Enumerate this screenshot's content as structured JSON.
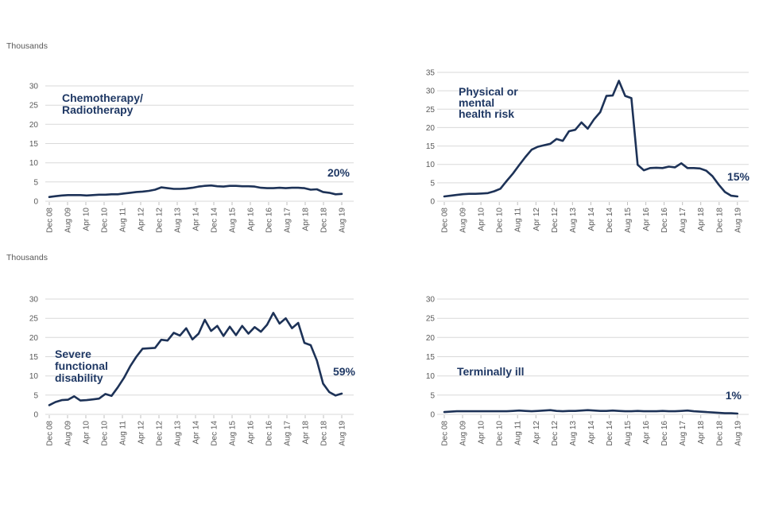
{
  "units_label": "Thousands",
  "colors": {
    "background": "#FFFFFF",
    "line": "#1D3257",
    "navy_text": "#1F3864",
    "grid": "#D9D9D9",
    "axis_text": "#595959"
  },
  "chart_data": [
    {
      "type": "line",
      "title": "Chemotherapy/ Radiotherapy",
      "title_lines": [
        "Chemotherapy/",
        "Radiotherapy"
      ],
      "annotation": "20%",
      "unit": "Thousands",
      "ylim": [
        0,
        30
      ],
      "y_ticks": [
        0,
        5,
        10,
        15,
        20,
        25,
        30
      ],
      "grid": "horizontal",
      "legend": "none",
      "x_tick_labels": [
        "Dec 08",
        "Aug 09",
        "Apr 10",
        "Dec 10",
        "Aug 11",
        "Apr 12",
        "Dec 12",
        "Aug 13",
        "Apr 14",
        "Dec 14",
        "Aug 15",
        "Apr 16",
        "Dec 16",
        "Aug 17",
        "Apr 18",
        "Dec 18",
        "Aug 19"
      ],
      "values": [
        1.1,
        1.3,
        1.5,
        1.6,
        1.6,
        1.6,
        1.5,
        1.6,
        1.7,
        1.7,
        1.8,
        1.8,
        2.0,
        2.2,
        2.4,
        2.5,
        2.7,
        3.0,
        3.6,
        3.4,
        3.2,
        3.2,
        3.3,
        3.5,
        3.8,
        4.0,
        4.1,
        3.9,
        3.8,
        4.0,
        4.0,
        3.9,
        3.9,
        3.8,
        3.5,
        3.4,
        3.4,
        3.5,
        3.4,
        3.5,
        3.5,
        3.4,
        3.0,
        3.1,
        2.4,
        2.2,
        1.8,
        1.9
      ]
    },
    {
      "type": "line",
      "title": "Physical or mental health risk",
      "title_lines": [
        "Physical or",
        "mental",
        "health risk"
      ],
      "annotation": "15%",
      "unit": "Thousands",
      "ylim": [
        0,
        35
      ],
      "y_ticks": [
        0,
        5,
        10,
        15,
        20,
        25,
        30,
        35
      ],
      "grid": "horizontal",
      "legend": "none",
      "x_tick_labels": [
        "Dec 08",
        "Aug 09",
        "Apr 10",
        "Dec 10",
        "Aug 11",
        "Apr 12",
        "Dec 12",
        "Aug 13",
        "Apr 14",
        "Dec 14",
        "Aug 15",
        "Apr 16",
        "Dec 16",
        "Aug 17",
        "Apr 18",
        "Dec 18",
        "Aug 19"
      ],
      "values": [
        1.3,
        1.5,
        1.7,
        1.9,
        2.0,
        2.0,
        2.1,
        2.2,
        2.7,
        3.4,
        5.5,
        7.5,
        9.8,
        12.0,
        14.0,
        14.8,
        15.2,
        15.6,
        16.9,
        16.4,
        19.0,
        19.4,
        21.4,
        19.7,
        22.2,
        24.2,
        28.6,
        28.7,
        32.7,
        28.6,
        28.0,
        9.9,
        8.4,
        9.0,
        9.1,
        9.0,
        9.4,
        9.2,
        10.3,
        9.0,
        9.0,
        8.9,
        8.3,
        6.8,
        4.5,
        2.5,
        1.5,
        1.3
      ]
    },
    {
      "type": "line",
      "title": "Severe functional disability",
      "title_lines": [
        "Severe",
        "functional",
        "disability"
      ],
      "annotation": "59%",
      "unit": "Thousands",
      "ylim": [
        0,
        30
      ],
      "y_ticks": [
        0,
        5,
        10,
        15,
        20,
        25,
        30
      ],
      "grid": "horizontal",
      "legend": "none",
      "x_tick_labels": [
        "Dec 08",
        "Aug 09",
        "Apr 10",
        "Dec 10",
        "Aug 11",
        "Apr 12",
        "Dec 12",
        "Aug 13",
        "Apr 14",
        "Dec 14",
        "Aug 15",
        "Apr 16",
        "Dec 16",
        "Aug 17",
        "Apr 18",
        "Dec 18",
        "Aug 19"
      ],
      "values": [
        2.4,
        3.2,
        3.7,
        3.8,
        4.7,
        3.6,
        3.7,
        3.9,
        4.1,
        5.3,
        4.8,
        7.0,
        9.5,
        12.5,
        15.0,
        17.1,
        17.2,
        17.3,
        19.4,
        19.2,
        21.2,
        20.5,
        22.4,
        19.5,
        21.0,
        24.6,
        21.7,
        23.0,
        20.4,
        22.8,
        20.6,
        23.0,
        21.0,
        22.7,
        21.5,
        23.3,
        26.4,
        23.6,
        25.0,
        22.4,
        23.8,
        18.6,
        18.0,
        14.0,
        8.0,
        5.8,
        4.9,
        5.4
      ]
    },
    {
      "type": "line",
      "title": "Terminally ill",
      "title_lines": [
        "Terminally ill"
      ],
      "annotation": "1%",
      "unit": "Thousands",
      "ylim": [
        0,
        30
      ],
      "y_ticks": [
        0,
        5,
        10,
        15,
        20,
        25,
        30
      ],
      "grid": "horizontal",
      "legend": "none",
      "x_tick_labels": [
        "Dec 08",
        "Aug 09",
        "Apr 10",
        "Dec 10",
        "Aug 11",
        "Apr 12",
        "Dec 12",
        "Aug 13",
        "Apr 14",
        "Dec 14",
        "Aug 15",
        "Apr 16",
        "Dec 16",
        "Aug 17",
        "Apr 18",
        "Dec 18",
        "Aug 19"
      ],
      "values": [
        0.6,
        0.7,
        0.8,
        0.8,
        0.8,
        0.8,
        0.8,
        0.8,
        0.8,
        0.8,
        0.8,
        0.9,
        1.0,
        0.9,
        0.8,
        0.9,
        1.0,
        1.1,
        0.9,
        0.8,
        0.9,
        0.9,
        1.0,
        1.1,
        1.0,
        0.9,
        0.9,
        1.0,
        0.9,
        0.8,
        0.8,
        0.9,
        0.8,
        0.8,
        0.8,
        0.9,
        0.8,
        0.8,
        0.9,
        1.0,
        0.8,
        0.7,
        0.6,
        0.5,
        0.4,
        0.3,
        0.3,
        0.2
      ]
    }
  ]
}
